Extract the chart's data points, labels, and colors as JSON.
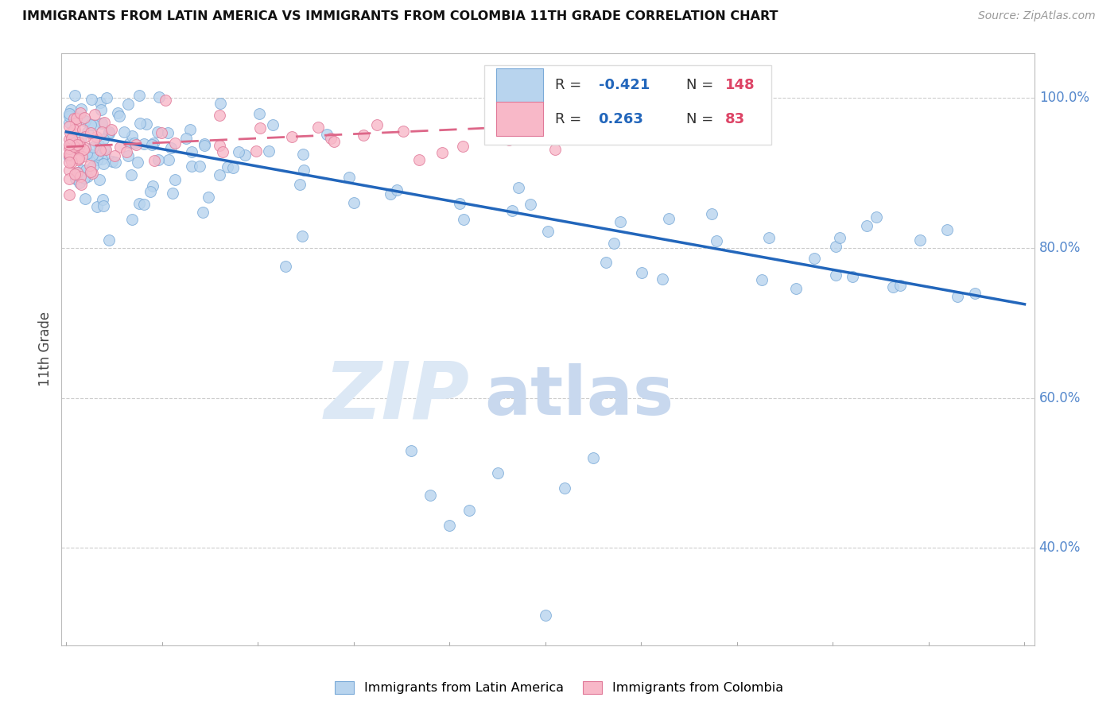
{
  "title": "IMMIGRANTS FROM LATIN AMERICA VS IMMIGRANTS FROM COLOMBIA 11TH GRADE CORRELATION CHART",
  "source": "Source: ZipAtlas.com",
  "ylabel": "11th Grade",
  "r_blue": -0.421,
  "n_blue": 148,
  "r_pink": 0.263,
  "n_pink": 83,
  "blue_color": "#b8d4ee",
  "blue_edge_color": "#7aaad8",
  "blue_line_color": "#2266bb",
  "pink_color": "#f8b8c8",
  "pink_edge_color": "#e07898",
  "pink_line_color": "#dd6688",
  "legend_r_color": "#2266bb",
  "legend_n_color": "#dd4466",
  "watermark_color": "#dde8f5",
  "grid_color": "#cccccc",
  "ytick_color": "#5588cc",
  "xtick_color": "#5588cc",
  "bg_color": "#ffffff",
  "blue_trend_x0": 0.0,
  "blue_trend_y0": 0.955,
  "blue_trend_x1": 1.0,
  "blue_trend_y1": 0.725,
  "pink_trend_x0": 0.0,
  "pink_trend_y0": 0.935,
  "pink_trend_x1": 0.7,
  "pink_trend_y1": 0.975,
  "ylim_min": 0.27,
  "ylim_max": 1.06,
  "xlim_min": -0.005,
  "xlim_max": 1.01
}
